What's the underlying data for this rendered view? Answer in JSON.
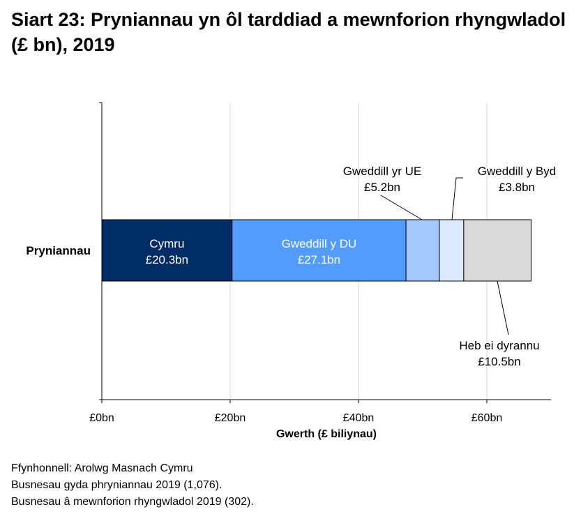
{
  "chart_data": {
    "type": "bar",
    "orientation": "horizontal",
    "stacked": true,
    "title": "Siart 23: Pryniannau yn ôl tarddiad a mewnforion rhyngwladol (£ bn), 2019",
    "xlabel": "Gwerth (£ biliynau)",
    "ylabel": "",
    "categories": [
      "Pryniannau"
    ],
    "xlim": [
      0,
      70
    ],
    "xticks": [
      0,
      20,
      40,
      60
    ],
    "xtick_labels": [
      "£0bn",
      "£20bn",
      "£40bn",
      "£60bn"
    ],
    "grid": true,
    "series": [
      {
        "name": "Cymru",
        "value": 20.3,
        "label": "£20.3bn",
        "color": "#002d68"
      },
      {
        "name": "Gweddill y DU",
        "value": 27.1,
        "label": "£27.1bn",
        "color": "#539cff"
      },
      {
        "name": "Gweddill yr UE",
        "value": 5.2,
        "label": "£5.2bn",
        "color": "#a3c9ff"
      },
      {
        "name": "Gweddill y Byd",
        "value": 3.8,
        "label": "£3.8bn",
        "color": "#dae9ff"
      },
      {
        "name": "Heb ei dyrannu",
        "value": 10.5,
        "label": "£10.5bn",
        "color": "#d9d9d9"
      }
    ]
  },
  "footer": [
    "Ffynhonnell: Arolwg Masnach Cymru",
    "Busnesau gyda phryniannau 2019 (1,076).",
    "Busnesau â mewnforion rhyngwladol 2019 (302)."
  ]
}
